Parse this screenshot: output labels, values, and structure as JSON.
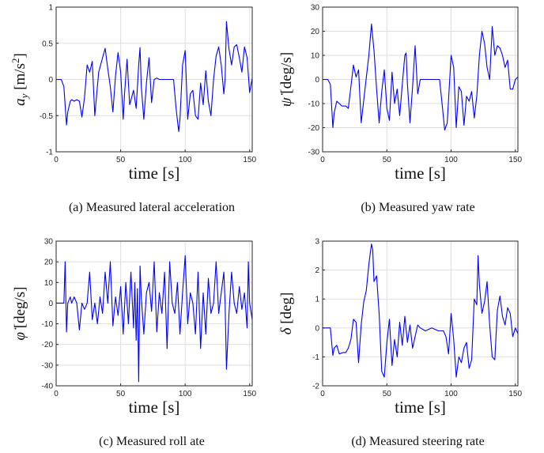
{
  "chart_data": [
    {
      "type": "line",
      "caption": "(a) Measured lateral acceleration",
      "xlabel": "time [s]",
      "ylabel": "a_y [m/s^2]",
      "ylabel_parts": {
        "sym": "a",
        "sub": "y",
        "unit": "[m/s",
        "sup": "2",
        "close": "]"
      },
      "xlim": [
        0,
        152
      ],
      "ylim": [
        -1,
        1
      ],
      "xticks": [
        0,
        50,
        100,
        150
      ],
      "yticks": [
        -1,
        -0.5,
        0,
        0.5,
        1
      ],
      "ytick_labels": [
        "-1",
        "-0.5",
        "0",
        "0.5",
        "1"
      ],
      "grid": true,
      "color": "#0000ff",
      "x": [
        0,
        4,
        6,
        8,
        9,
        11,
        12,
        14,
        16,
        18,
        20,
        22,
        24,
        26,
        28,
        30,
        33,
        36,
        38,
        40,
        42,
        44,
        46,
        48,
        50,
        52,
        53,
        55,
        57,
        60,
        62,
        64,
        65,
        66,
        68,
        70,
        72,
        74,
        76,
        78,
        80,
        82,
        84,
        86,
        88,
        91,
        93,
        95,
        96,
        98,
        100,
        102,
        104,
        106,
        108,
        110,
        112,
        114,
        116,
        118,
        120,
        122,
        124,
        126,
        128,
        130,
        131,
        132,
        134,
        136,
        138,
        140,
        142,
        144,
        146,
        148,
        150,
        152
      ],
      "y": [
        0,
        0,
        -0.1,
        -0.63,
        -0.45,
        -0.3,
        -0.28,
        -0.3,
        -0.28,
        -0.3,
        -0.52,
        -0.25,
        0.2,
        0.1,
        0.25,
        -0.5,
        0.1,
        0.3,
        0.43,
        0.15,
        -0.1,
        -0.45,
        0.05,
        0.37,
        0.1,
        -0.55,
        -0.2,
        0.28,
        -0.35,
        -0.15,
        -0.4,
        0.2,
        0.44,
        -0.1,
        -0.55,
        -0.05,
        0.3,
        -0.32,
        0.0,
        0.02,
        0.0,
        0.0,
        0.0,
        0.0,
        0.0,
        0.0,
        -0.4,
        -0.72,
        -0.55,
        0.2,
        0.4,
        -0.55,
        -0.2,
        -0.15,
        -0.5,
        -0.55,
        -0.05,
        -0.35,
        0.12,
        -0.3,
        -0.5,
        0.0,
        0.32,
        0.45,
        0.2,
        -0.2,
        0.0,
        0.8,
        0.42,
        0.2,
        0.45,
        0.48,
        0.3,
        0.1,
        0.45,
        0.3,
        -0.18,
        0.02
      ]
    },
    {
      "type": "line",
      "caption": "(b) Measured yaw rate",
      "xlabel": "time [s]",
      "ylabel": "ψ̇ [deg/s]",
      "ylabel_parts": {
        "sym": "ψ̇",
        "unit": "[deg/s]"
      },
      "xlim": [
        0,
        152
      ],
      "ylim": [
        -30,
        30
      ],
      "xticks": [
        0,
        50,
        100,
        150
      ],
      "yticks": [
        -30,
        -20,
        -10,
        0,
        10,
        20,
        30
      ],
      "ytick_labels": [
        "-30",
        "-20",
        "-10",
        "0",
        "10",
        "20",
        "30"
      ],
      "grid": true,
      "color": "#0000ff",
      "x": [
        0,
        4,
        6,
        8,
        9,
        11,
        13,
        15,
        18,
        20,
        22,
        24,
        26,
        28,
        30,
        33,
        36,
        38,
        40,
        42,
        44,
        46,
        48,
        50,
        52,
        54,
        56,
        58,
        60,
        62,
        64,
        65,
        66,
        68,
        70,
        72,
        74,
        76,
        80,
        85,
        91,
        93,
        95,
        97,
        100,
        102,
        104,
        106,
        108,
        110,
        112,
        114,
        116,
        118,
        120,
        122,
        124,
        126,
        128,
        130,
        132,
        134,
        136,
        138,
        140,
        142,
        144,
        146,
        148,
        150,
        152
      ],
      "y": [
        0,
        0,
        -2,
        -20,
        -14,
        -9,
        -10,
        -11,
        -11,
        -12,
        -3,
        6,
        1,
        4,
        -18,
        -4,
        10,
        23,
        12,
        -4,
        -18,
        -5,
        4,
        -12,
        -17,
        3,
        -10,
        -4,
        -15,
        -2,
        10,
        11,
        -2,
        -18,
        -3,
        14,
        -6,
        0,
        0,
        0,
        0,
        -10,
        -21,
        -18,
        10,
        5,
        -20,
        -3,
        -5,
        -19,
        -7,
        -9,
        -5,
        -16,
        -7,
        10,
        20,
        15,
        5,
        0,
        22,
        10,
        14,
        13,
        10,
        5,
        8,
        -4,
        -4,
        0,
        1
      ]
    },
    {
      "type": "line",
      "caption": "(c) Measured roll ate",
      "xlabel": "time [s]",
      "ylabel": "φ̇ [deg/s]",
      "ylabel_parts": {
        "sym": "φ̇",
        "unit": "[deg/s]"
      },
      "xlim": [
        0,
        152
      ],
      "ylim": [
        -40,
        30
      ],
      "xticks": [
        0,
        50,
        100,
        150
      ],
      "yticks": [
        -40,
        -30,
        -20,
        -10,
        0,
        10,
        20,
        30
      ],
      "ytick_labels": [
        "-40",
        "-30",
        "-20",
        "-10",
        "0",
        "10",
        "20",
        "30"
      ],
      "grid": true,
      "color": "#0000ff",
      "x": [
        0,
        4,
        6,
        7,
        8,
        9,
        11,
        12,
        14,
        16,
        18,
        20,
        22,
        24,
        26,
        28,
        30,
        32,
        34,
        36,
        38,
        40,
        42,
        44,
        46,
        48,
        50,
        52,
        54,
        56,
        58,
        60,
        61,
        62,
        63,
        64,
        65,
        66,
        68,
        70,
        72,
        74,
        76,
        78,
        80,
        82,
        84,
        86,
        88,
        90,
        92,
        94,
        96,
        98,
        100,
        102,
        104,
        106,
        108,
        110,
        112,
        114,
        116,
        118,
        120,
        122,
        124,
        126,
        128,
        130,
        131,
        132,
        134,
        136,
        138,
        140,
        142,
        144,
        146,
        148,
        149,
        150,
        152
      ],
      "y": [
        0,
        0,
        0,
        20,
        -14,
        0,
        3,
        0,
        3,
        0,
        -13,
        0,
        -3,
        0,
        15,
        -8,
        0,
        -10,
        3,
        -5,
        15,
        0,
        20,
        -11,
        3,
        -6,
        8,
        -15,
        10,
        -10,
        15,
        -12,
        10,
        -18,
        7,
        -38,
        18,
        3,
        -15,
        5,
        10,
        -4,
        20,
        -14,
        5,
        -5,
        15,
        -22,
        20,
        0,
        -5,
        10,
        -15,
        5,
        23,
        -10,
        5,
        0,
        -15,
        15,
        -22,
        5,
        -15,
        12,
        -5,
        0,
        20,
        -5,
        5,
        15,
        0,
        -32,
        -5,
        15,
        0,
        -5,
        8,
        -3,
        5,
        -12,
        20,
        0,
        -8
      ]
    },
    {
      "type": "line",
      "caption": "(d) Measured steering rate",
      "xlabel": "time [s]",
      "ylabel": "δ [deg]",
      "ylabel_parts": {
        "sym": "δ",
        "unit": "[deg]"
      },
      "xlim": [
        0,
        152
      ],
      "ylim": [
        -2,
        3
      ],
      "xticks": [
        0,
        50,
        100,
        150
      ],
      "yticks": [
        -2,
        -1,
        0,
        1,
        2,
        3
      ],
      "ytick_labels": [
        "-2",
        "-1",
        "0",
        "1",
        "2",
        "3"
      ],
      "grid": true,
      "color": "#0000ff",
      "x": [
        0,
        4,
        6,
        8,
        9,
        11,
        13,
        16,
        18,
        20,
        22,
        24,
        26,
        28,
        30,
        32,
        34,
        36,
        38,
        39,
        40,
        42,
        44,
        46,
        48,
        50,
        52,
        54,
        56,
        58,
        60,
        62,
        64,
        66,
        68,
        70,
        72,
        74,
        76,
        80,
        85,
        90,
        94,
        96,
        98,
        100,
        102,
        104,
        106,
        108,
        110,
        112,
        114,
        116,
        118,
        120,
        121,
        122,
        124,
        126,
        128,
        130,
        132,
        134,
        136,
        138,
        140,
        142,
        144,
        146,
        148,
        150,
        152
      ],
      "y": [
        0,
        0,
        0,
        -0.95,
        -0.7,
        -0.6,
        -0.9,
        -0.85,
        -0.85,
        -0.7,
        -0.4,
        0.3,
        0.2,
        -1.2,
        0.1,
        0.9,
        1.3,
        2.2,
        2.9,
        2.7,
        1.6,
        1.8,
        0.5,
        -1.5,
        -1.7,
        -0.5,
        0.3,
        -1.3,
        -0.4,
        -1.0,
        0.2,
        -0.6,
        0.4,
        -0.5,
        0.1,
        -0.7,
        -0.3,
        0.1,
        0.0,
        -0.1,
        0.0,
        -0.1,
        -0.1,
        -0.3,
        -0.9,
        0.5,
        -0.4,
        -1.7,
        -1.0,
        -1.2,
        -0.7,
        -0.5,
        -1.4,
        -1.1,
        1.0,
        0.8,
        2.5,
        1.5,
        0.5,
        0.9,
        1.6,
        0.1,
        -1.0,
        -1.1,
        0.6,
        1.1,
        0.4,
        0.1,
        0.7,
        0.5,
        -0.3,
        0.0,
        -0.2
      ]
    }
  ]
}
